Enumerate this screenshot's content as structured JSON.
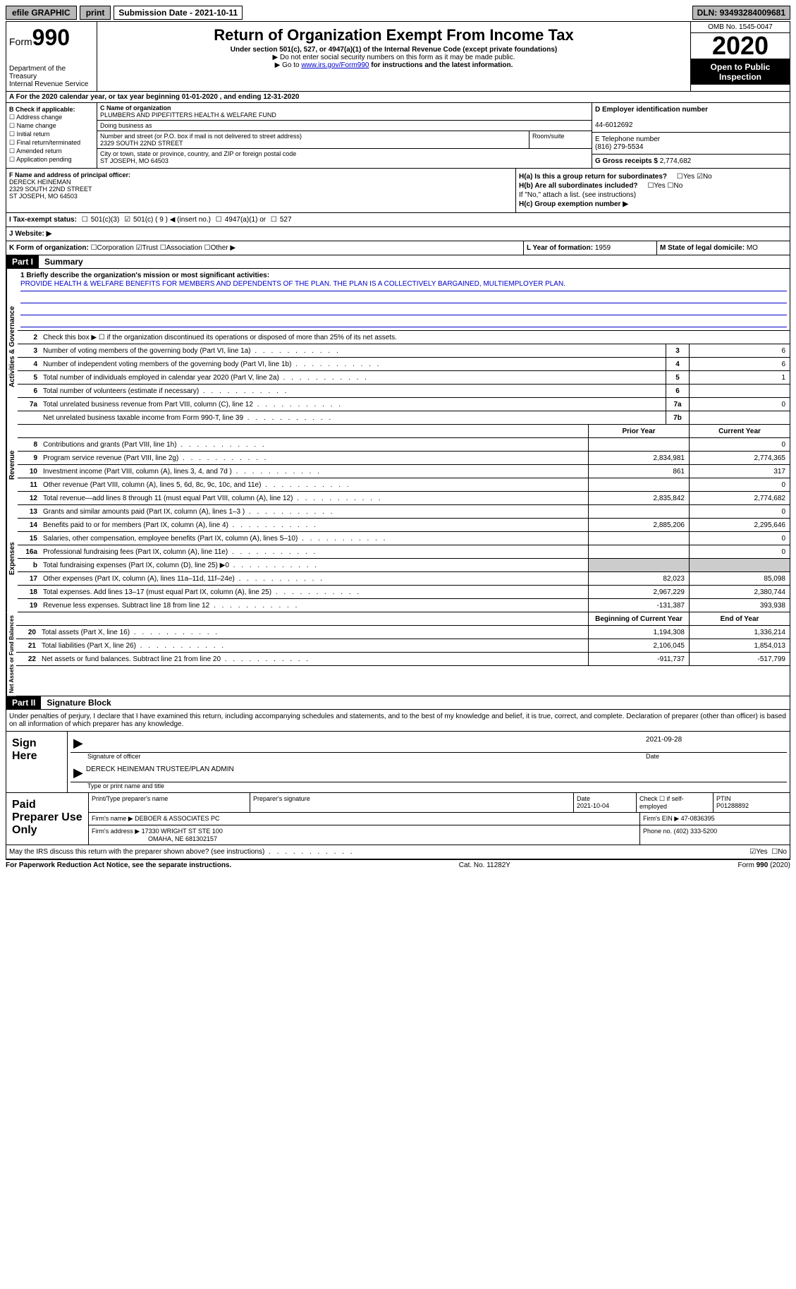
{
  "topbar": {
    "efile": "efile GRAPHIC",
    "print": "print",
    "submission_label": "Submission Date - ",
    "submission_date": "2021-10-11",
    "dln_label": "DLN: ",
    "dln": "93493284009681"
  },
  "header": {
    "form_prefix": "Form",
    "form_number": "990",
    "dept": "Department of the Treasury",
    "irs": "Internal Revenue Service",
    "title": "Return of Organization Exempt From Income Tax",
    "subtitle": "Under section 501(c), 527, or 4947(a)(1) of the Internal Revenue Code (except private foundations)",
    "note1": "▶ Do not enter social security numbers on this form as it may be made public.",
    "note2_pre": "▶ Go to ",
    "note2_link": "www.irs.gov/Form990",
    "note2_post": " for instructions and the latest information.",
    "omb": "OMB No. 1545-0047",
    "year": "2020",
    "open": "Open to Public Inspection"
  },
  "row_a": "A For the 2020 calendar year, or tax year beginning 01-01-2020   , and ending 12-31-2020",
  "section_b": {
    "label": "B Check if applicable:",
    "opts": [
      "Address change",
      "Name change",
      "Initial return",
      "Final return/terminated",
      "Amended return",
      "Application pending"
    ]
  },
  "section_c": {
    "name_label": "C Name of organization",
    "name": "PLUMBERS AND PIPEFITTERS HEALTH & WELFARE FUND",
    "dba_label": "Doing business as",
    "addr_label": "Number and street (or P.O. box if mail is not delivered to street address)",
    "room_label": "Room/suite",
    "addr": "2329 SOUTH 22ND STREET",
    "city_label": "City or town, state or province, country, and ZIP or foreign postal code",
    "city": "ST JOSEPH, MO  64503"
  },
  "section_d": {
    "ein_label": "D Employer identification number",
    "ein": "44-6012692",
    "phone_label": "E Telephone number",
    "phone": "(816) 279-5534",
    "gross_label": "G Gross receipts $ ",
    "gross": "2,774,682"
  },
  "section_f": {
    "label": "F Name and address of principal officer:",
    "name": "DERECK HEINEMAN",
    "addr1": "2329 SOUTH 22ND STREET",
    "addr2": "ST JOSEPH, MO  64503"
  },
  "section_h": {
    "ha_label": "H(a)  Is this a group return for subordinates?",
    "ha_yes": "Yes",
    "ha_no": "No",
    "hb_label": "H(b)  Are all subordinates included?",
    "hb_note": "If \"No,\" attach a list. (see instructions)",
    "hc_label": "H(c)  Group exemption number ▶"
  },
  "tax_status": {
    "label_i": "I  Tax-exempt status:",
    "opt1": "501(c)(3)",
    "opt2": "501(c) ( 9 ) ◀ (insert no.)",
    "opt3": "4947(a)(1) or",
    "opt4": "527",
    "label_j": "J  Website: ▶"
  },
  "section_k": {
    "label": "K Form of organization:",
    "opts": [
      "Corporation",
      "Trust",
      "Association",
      "Other ▶"
    ],
    "l_label": "L Year of formation: ",
    "l_val": "1959",
    "m_label": "M State of legal domicile: ",
    "m_val": "MO"
  },
  "part1": {
    "header": "Part I",
    "title": "Summary",
    "mission_label": "1 Briefly describe the organization's mission or most significant activities:",
    "mission": "PROVIDE HEALTH & WELFARE BENEFITS FOR MEMBERS AND DEPENDENTS OF THE PLAN. THE PLAN IS A COLLECTIVELY BARGAINED, MULTIEMPLOYER PLAN.",
    "line2": "Check this box ▶ ☐  if the organization discontinued its operations or disposed of more than 25% of its net assets.",
    "vert_gov": "Activities & Governance",
    "vert_rev": "Revenue",
    "vert_exp": "Expenses",
    "vert_net": "Net Assets or Fund Balances",
    "col_prior": "Prior Year",
    "col_current": "Current Year",
    "col_begin": "Beginning of Current Year",
    "col_end": "End of Year"
  },
  "gov_lines": [
    {
      "n": "3",
      "d": "Number of voting members of the governing body (Part VI, line 1a)",
      "box": "3",
      "v": "6"
    },
    {
      "n": "4",
      "d": "Number of independent voting members of the governing body (Part VI, line 1b)",
      "box": "4",
      "v": "6"
    },
    {
      "n": "5",
      "d": "Total number of individuals employed in calendar year 2020 (Part V, line 2a)",
      "box": "5",
      "v": "1"
    },
    {
      "n": "6",
      "d": "Total number of volunteers (estimate if necessary)",
      "box": "6",
      "v": ""
    },
    {
      "n": "7a",
      "d": "Total unrelated business revenue from Part VIII, column (C), line 12",
      "box": "7a",
      "v": "0"
    },
    {
      "n": "",
      "d": "Net unrelated business taxable income from Form 990-T, line 39",
      "box": "7b",
      "v": ""
    }
  ],
  "rev_lines": [
    {
      "n": "8",
      "d": "Contributions and grants (Part VIII, line 1h)",
      "p": "",
      "c": "0"
    },
    {
      "n": "9",
      "d": "Program service revenue (Part VIII, line 2g)",
      "p": "2,834,981",
      "c": "2,774,365"
    },
    {
      "n": "10",
      "d": "Investment income (Part VIII, column (A), lines 3, 4, and 7d )",
      "p": "861",
      "c": "317"
    },
    {
      "n": "11",
      "d": "Other revenue (Part VIII, column (A), lines 5, 6d, 8c, 9c, 10c, and 11e)",
      "p": "",
      "c": "0"
    },
    {
      "n": "12",
      "d": "Total revenue—add lines 8 through 11 (must equal Part VIII, column (A), line 12)",
      "p": "2,835,842",
      "c": "2,774,682"
    }
  ],
  "exp_lines": [
    {
      "n": "13",
      "d": "Grants and similar amounts paid (Part IX, column (A), lines 1–3 )",
      "p": "",
      "c": "0"
    },
    {
      "n": "14",
      "d": "Benefits paid to or for members (Part IX, column (A), line 4)",
      "p": "2,885,206",
      "c": "2,295,646"
    },
    {
      "n": "15",
      "d": "Salaries, other compensation, employee benefits (Part IX, column (A), lines 5–10)",
      "p": "",
      "c": "0"
    },
    {
      "n": "16a",
      "d": "Professional fundraising fees (Part IX, column (A), line 11e)",
      "p": "",
      "c": "0"
    },
    {
      "n": "b",
      "d": "Total fundraising expenses (Part IX, column (D), line 25) ▶0",
      "p": "shaded",
      "c": "shaded"
    },
    {
      "n": "17",
      "d": "Other expenses (Part IX, column (A), lines 11a–11d, 11f–24e)",
      "p": "82,023",
      "c": "85,098"
    },
    {
      "n": "18",
      "d": "Total expenses. Add lines 13–17 (must equal Part IX, column (A), line 25)",
      "p": "2,967,229",
      "c": "2,380,744"
    },
    {
      "n": "19",
      "d": "Revenue less expenses. Subtract line 18 from line 12",
      "p": "-131,387",
      "c": "393,938"
    }
  ],
  "net_lines": [
    {
      "n": "20",
      "d": "Total assets (Part X, line 16)",
      "p": "1,194,308",
      "c": "1,336,214"
    },
    {
      "n": "21",
      "d": "Total liabilities (Part X, line 26)",
      "p": "2,106,045",
      "c": "1,854,013"
    },
    {
      "n": "22",
      "d": "Net assets or fund balances. Subtract line 21 from line 20",
      "p": "-911,737",
      "c": "-517,799"
    }
  ],
  "part2": {
    "header": "Part II",
    "title": "Signature Block",
    "decl": "Under penalties of perjury, I declare that I have examined this return, including accompanying schedules and statements, and to the best of my knowledge and belief, it is true, correct, and complete. Declaration of preparer (other than officer) is based on all information of which preparer has any knowledge.",
    "sign_here": "Sign Here",
    "sig_officer": "Signature of officer",
    "sig_date": "Date",
    "sig_date_val": "2021-09-28",
    "officer_name": "DERECK HEINEMAN  TRUSTEE/PLAN ADMIN",
    "type_name": "Type or print name and title",
    "paid_prep": "Paid Preparer Use Only",
    "prep_name_label": "Print/Type preparer's name",
    "prep_sig_label": "Preparer's signature",
    "prep_date_label": "Date",
    "prep_date": "2021-10-04",
    "prep_check_label": "Check ☐ if self-employed",
    "ptin_label": "PTIN",
    "ptin": "P01288892",
    "firm_name_label": "Firm's name    ▶ ",
    "firm_name": "DEBOER & ASSOCIATES PC",
    "firm_ein_label": "Firm's EIN ▶ ",
    "firm_ein": "47-0836395",
    "firm_addr_label": "Firm's address ▶ ",
    "firm_addr1": "17330 WRIGHT ST STE 100",
    "firm_addr2": "OMAHA, NE  681302157",
    "firm_phone_label": "Phone no. ",
    "firm_phone": "(402) 333-5200",
    "discuss": "May the IRS discuss this return with the preparer shown above? (see instructions)",
    "yes": "Yes",
    "no": "No"
  },
  "footer": {
    "left": "For Paperwork Reduction Act Notice, see the separate instructions.",
    "mid": "Cat. No. 11282Y",
    "right": "Form 990 (2020)"
  }
}
